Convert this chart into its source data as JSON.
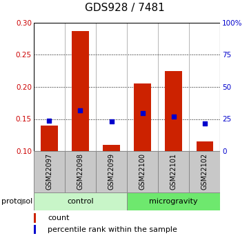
{
  "title": "GDS928 / 7481",
  "samples": [
    "GSM22097",
    "GSM22098",
    "GSM22099",
    "GSM22100",
    "GSM22101",
    "GSM22102"
  ],
  "group_labels": [
    "control",
    "microgravity"
  ],
  "group_colors": [
    "#c8f5c8",
    "#6ee86e"
  ],
  "bar_bottom": 0.1,
  "red_values": [
    0.14,
    0.287,
    0.11,
    0.205,
    0.225,
    0.115
  ],
  "blue_values_left": [
    0.147,
    0.163,
    0.146,
    0.159,
    0.154,
    0.143
  ],
  "ylim_left": [
    0.1,
    0.3
  ],
  "ylim_right": [
    0,
    100
  ],
  "yticks_left": [
    0.1,
    0.15,
    0.2,
    0.25,
    0.3
  ],
  "yticks_right": [
    0,
    25,
    50,
    75,
    100
  ],
  "ytick_labels_right": [
    "0",
    "25",
    "50",
    "75",
    "100%"
  ],
  "left_color": "#cc0000",
  "right_color": "#0000cc",
  "bar_color": "#cc2200",
  "blue_marker_color": "#0000cc",
  "grid_color": "#000000",
  "sample_box_color": "#c8c8c8",
  "legend_count_label": "count",
  "legend_pct_label": "percentile rank within the sample",
  "bar_width": 0.55,
  "title_fontsize": 11,
  "tick_fontsize": 7.5,
  "sample_fontsize": 7,
  "protocol_fontsize": 8,
  "legend_fontsize": 8
}
